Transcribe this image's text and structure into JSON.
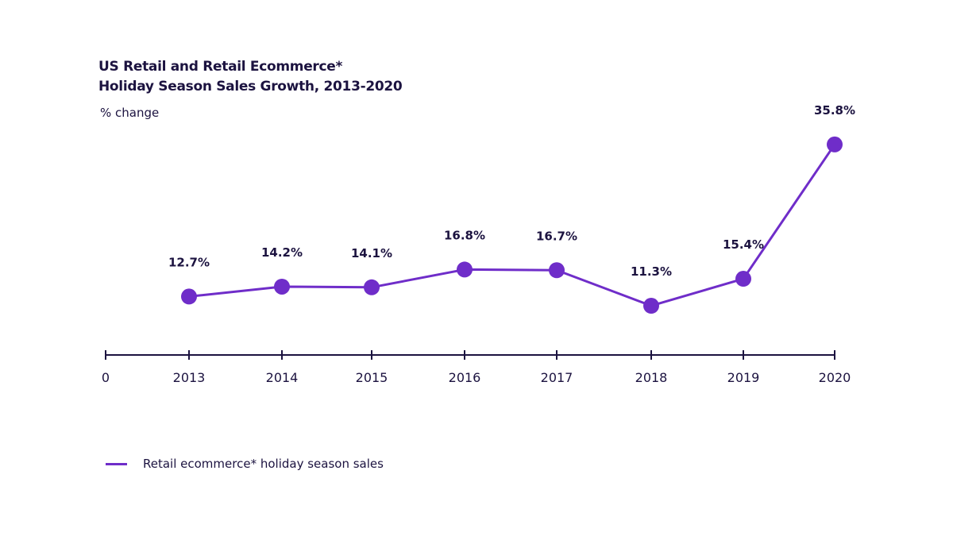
{
  "chart_data": {
    "type": "line",
    "title": [
      "US Retail and Retail Ecommerce*",
      "Holiday Season Sales Growth, 2013-2020"
    ],
    "ylabel": "% change",
    "xlabel": "",
    "x_origin_label": "0",
    "categories": [
      "2013",
      "2014",
      "2015",
      "2016",
      "2017",
      "2018",
      "2019",
      "2020"
    ],
    "series": [
      {
        "name": "Retail ecommerce* holiday season sales",
        "values": [
          12.7,
          14.2,
          14.1,
          16.8,
          16.7,
          11.3,
          15.4,
          35.8
        ],
        "labels": [
          "12.7%",
          "14.2%",
          "14.1%",
          "16.8%",
          "16.7%",
          "11.3%",
          "15.4%",
          "35.8%"
        ],
        "color": "#6f2dc9"
      }
    ],
    "grid": false,
    "legend_position": "bottom-left"
  }
}
